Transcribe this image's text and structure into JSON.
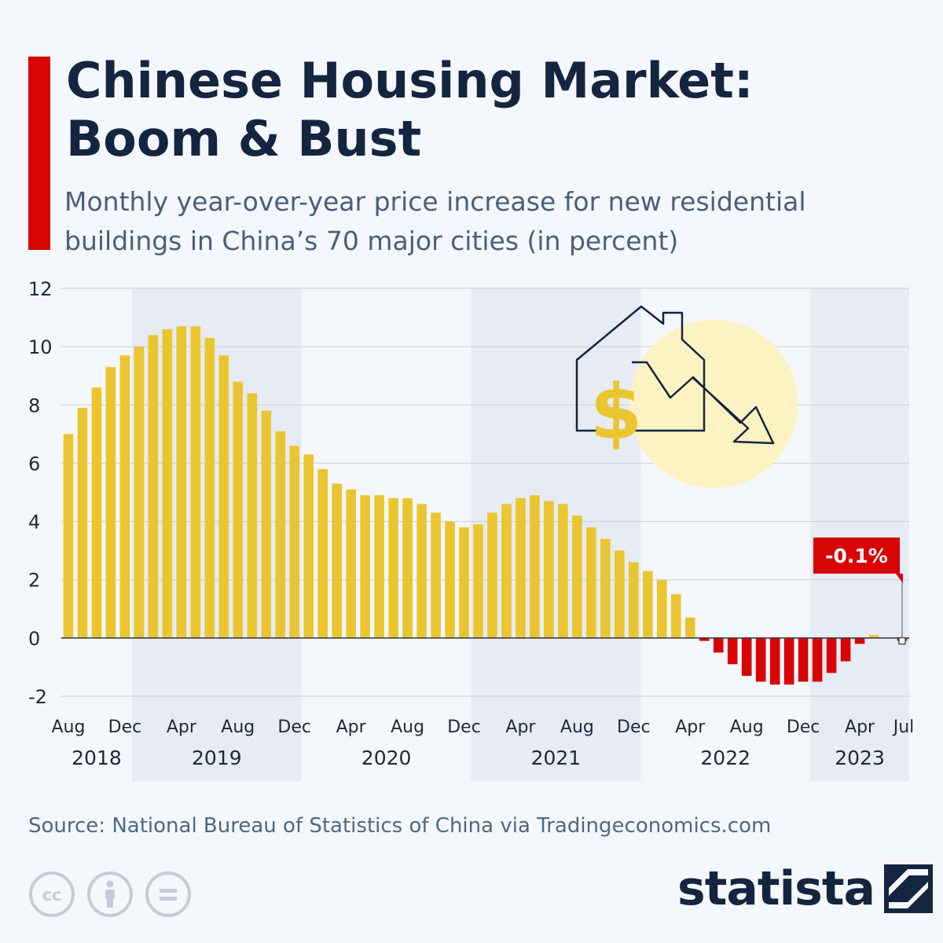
{
  "header": {
    "title": "Chinese Housing Market: Boom & Bust",
    "subtitle": "Monthly year-over-year price increase for new residential buildings in China’s 70 major cities (in percent)"
  },
  "colors": {
    "positive": "#ebc52f",
    "negative": "#d90404",
    "accent": "#d90404",
    "title": "#13253f",
    "band": "#e6ebf4"
  },
  "chart_data": {
    "type": "bar",
    "start": "Aug 2018",
    "categories": [
      "Aug 2018",
      "Sep 2018",
      "Oct 2018",
      "Nov 2018",
      "Dec 2018",
      "Jan 2019",
      "Feb 2019",
      "Mar 2019",
      "Apr 2019",
      "May 2019",
      "Jun 2019",
      "Jul 2019",
      "Aug 2019",
      "Sep 2019",
      "Oct 2019",
      "Nov 2019",
      "Dec 2019",
      "Jan 2020",
      "Feb 2020",
      "Mar 2020",
      "Apr 2020",
      "May 2020",
      "Jun 2020",
      "Jul 2020",
      "Aug 2020",
      "Sep 2020",
      "Oct 2020",
      "Nov 2020",
      "Dec 2020",
      "Jan 2021",
      "Feb 2021",
      "Mar 2021",
      "Apr 2021",
      "May 2021",
      "Jun 2021",
      "Jul 2021",
      "Aug 2021",
      "Sep 2021",
      "Oct 2021",
      "Nov 2021",
      "Dec 2021",
      "Jan 2022",
      "Feb 2022",
      "Mar 2022",
      "Apr 2022",
      "May 2022",
      "Jun 2022",
      "Jul 2022",
      "Aug 2022",
      "Sep 2022",
      "Oct 2022",
      "Nov 2022",
      "Dec 2022",
      "Jan 2023",
      "Feb 2023",
      "Mar 2023",
      "Apr 2023",
      "May 2023",
      "Jun 2023",
      "Jul 2023"
    ],
    "values": [
      7.0,
      7.9,
      8.6,
      9.3,
      9.7,
      10.0,
      10.4,
      10.6,
      10.7,
      10.7,
      10.3,
      9.7,
      8.8,
      8.4,
      7.8,
      7.1,
      6.6,
      6.3,
      5.8,
      5.3,
      5.1,
      4.9,
      4.9,
      4.8,
      4.8,
      4.6,
      4.3,
      4.0,
      3.8,
      3.9,
      4.3,
      4.6,
      4.8,
      4.9,
      4.7,
      4.6,
      4.2,
      3.8,
      3.4,
      3.0,
      2.6,
      2.3,
      2.0,
      1.5,
      0.7,
      -0.1,
      -0.5,
      -0.9,
      -1.3,
      -1.5,
      -1.6,
      -1.6,
      -1.5,
      -1.5,
      -1.2,
      -0.8,
      -0.2,
      0.1,
      0.0,
      -0.1
    ],
    "ylim": [
      -2,
      12
    ],
    "yticks": [
      -2,
      0,
      2,
      4,
      6,
      8,
      10,
      12
    ],
    "x_tick_labels": [
      {
        "label": "Aug",
        "index": 0
      },
      {
        "label": "Dec",
        "index": 4
      },
      {
        "label": "Apr",
        "index": 8
      },
      {
        "label": "Aug",
        "index": 12
      },
      {
        "label": "Dec",
        "index": 16
      },
      {
        "label": "Apr",
        "index": 20
      },
      {
        "label": "Aug",
        "index": 24
      },
      {
        "label": "Dec",
        "index": 28
      },
      {
        "label": "Apr",
        "index": 32
      },
      {
        "label": "Aug",
        "index": 36
      },
      {
        "label": "Dec",
        "index": 40
      },
      {
        "label": "Apr",
        "index": 44
      },
      {
        "label": "Aug",
        "index": 48
      },
      {
        "label": "Dec",
        "index": 52
      },
      {
        "label": "Apr",
        "index": 56
      },
      {
        "label": "Jul",
        "index": 59
      }
    ],
    "year_labels": [
      {
        "label": "2018",
        "from": 0,
        "to": 4,
        "shaded": false
      },
      {
        "label": "2019",
        "from": 5,
        "to": 16,
        "shaded": true
      },
      {
        "label": "2020",
        "from": 17,
        "to": 28,
        "shaded": false
      },
      {
        "label": "2021",
        "from": 29,
        "to": 40,
        "shaded": true
      },
      {
        "label": "2022",
        "from": 41,
        "to": 52,
        "shaded": false
      },
      {
        "label": "2023",
        "from": 53,
        "to": 59,
        "shaded": true
      }
    ],
    "annotation": {
      "text": "-0.1%",
      "index": 59
    },
    "grid": true,
    "legend": "none"
  },
  "footer": {
    "source": "Source: National Bureau of Statistics of China via Tradingeconomics.com",
    "brand": "statista",
    "license_icons": [
      "cc-icon",
      "attribution-icon",
      "no-derivatives-icon"
    ]
  }
}
